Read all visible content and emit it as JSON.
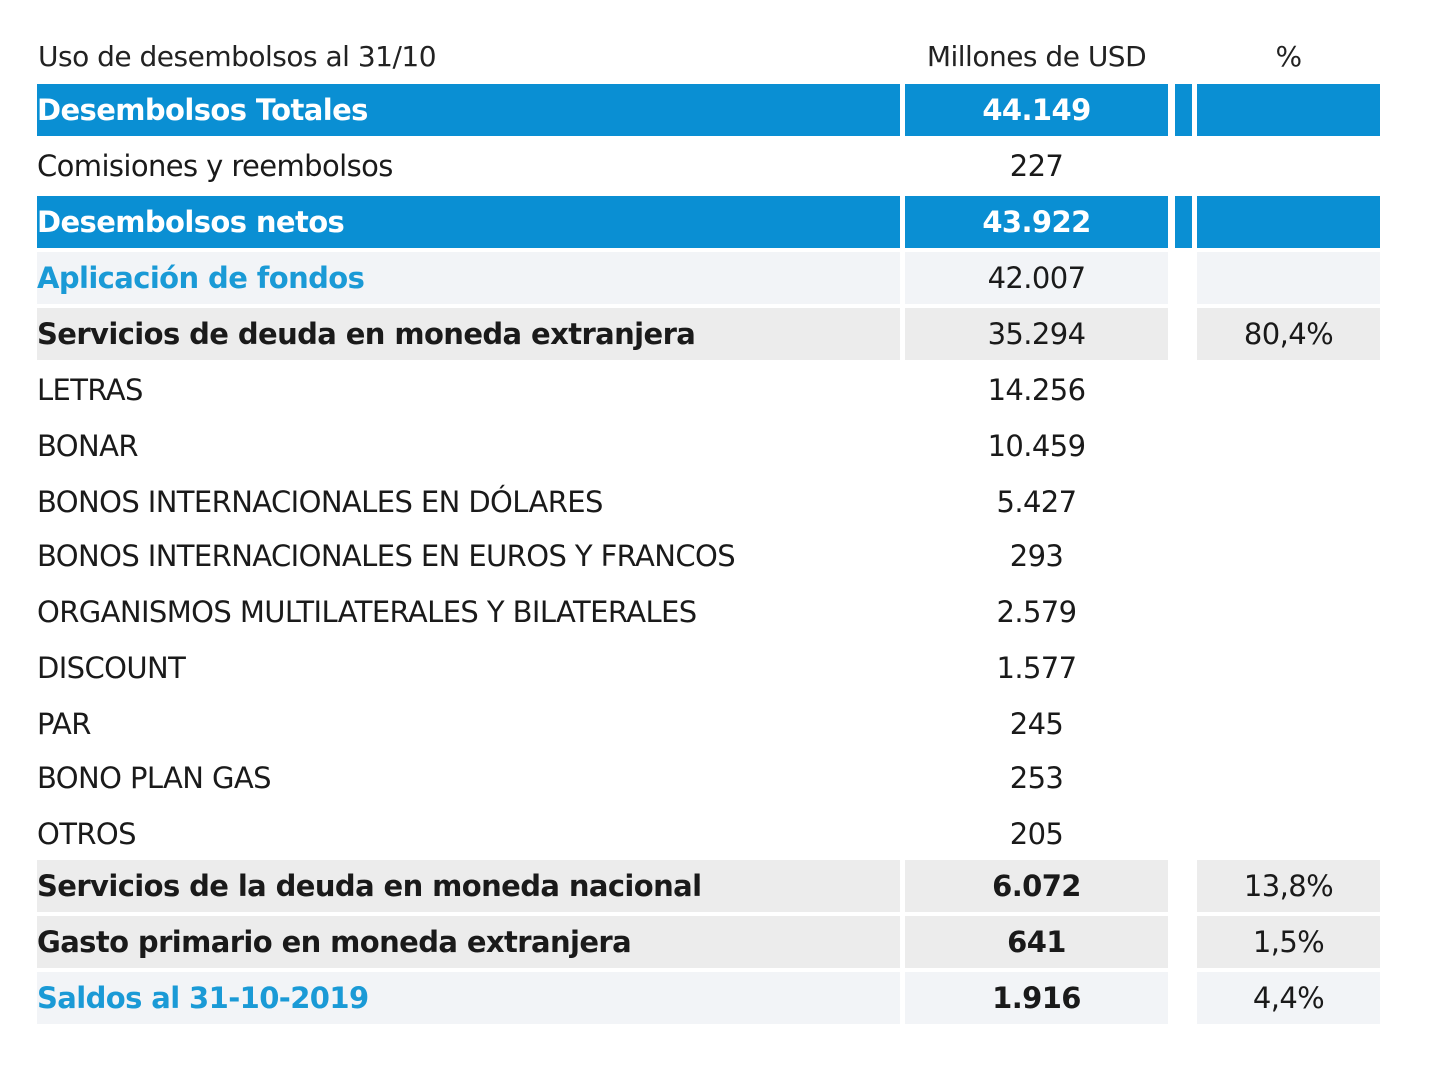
{
  "header": {
    "label": "Uso de desembolsos al 31/10",
    "value": "Millones de USD",
    "pct": "%"
  },
  "colors": {
    "blue": "#0a8fd3",
    "accent_text": "#1a9ad6",
    "light_bg": "#f2f4f7",
    "grey_bg": "#ececec"
  },
  "rows": [
    {
      "label": "Desembolsos Totales",
      "value": "44.149",
      "pct": "",
      "style": "blue"
    },
    {
      "label": "Comisiones y reembolsos",
      "value": "227",
      "pct": "",
      "style": "plain"
    },
    {
      "label": "Desembolsos netos",
      "value": "43.922",
      "pct": "",
      "style": "blue"
    },
    {
      "label": "Aplicación de fondos",
      "value": "42.007",
      "pct": "",
      "style": "light accent"
    },
    {
      "label": "Servicios de deuda en moneda extranjera",
      "value": "35.294",
      "pct": "80,4%",
      "style": "grey bold"
    },
    {
      "label": "LETRAS",
      "value": "14.256",
      "pct": "",
      "style": "plain"
    },
    {
      "label": "BONAR",
      "value": "10.459",
      "pct": "",
      "style": "plain"
    },
    {
      "label": "BONOS INTERNACIONALES EN DÓLARES",
      "value": "5.427",
      "pct": "",
      "style": "plain"
    },
    {
      "label": "BONOS INTERNACIONALES EN EUROS Y FRANCOS",
      "value": "293",
      "pct": "",
      "style": "plain"
    },
    {
      "label": "ORGANISMOS MULTILATERALES Y BILATERALES",
      "value": "2.579",
      "pct": "",
      "style": "plain"
    },
    {
      "label": "DISCOUNT",
      "value": "1.577",
      "pct": "",
      "style": "plain"
    },
    {
      "label": "PAR",
      "value": "245",
      "pct": "",
      "style": "plain"
    },
    {
      "label": "BONO PLAN GAS",
      "value": "253",
      "pct": "",
      "style": "plain"
    },
    {
      "label": "OTROS",
      "value": "205",
      "pct": "",
      "style": "plain"
    },
    {
      "label": "Servicios de la deuda en moneda nacional",
      "value": "6.072",
      "pct": "13,8%",
      "style": "grey bold boldval"
    },
    {
      "label": "Gasto primario en moneda extranjera",
      "value": "641",
      "pct": "1,5%",
      "style": "grey bold boldval"
    },
    {
      "label": "Saldos al 31-10-2019",
      "value": "1.916",
      "pct": "4,4%",
      "style": "light accent boldval"
    }
  ]
}
